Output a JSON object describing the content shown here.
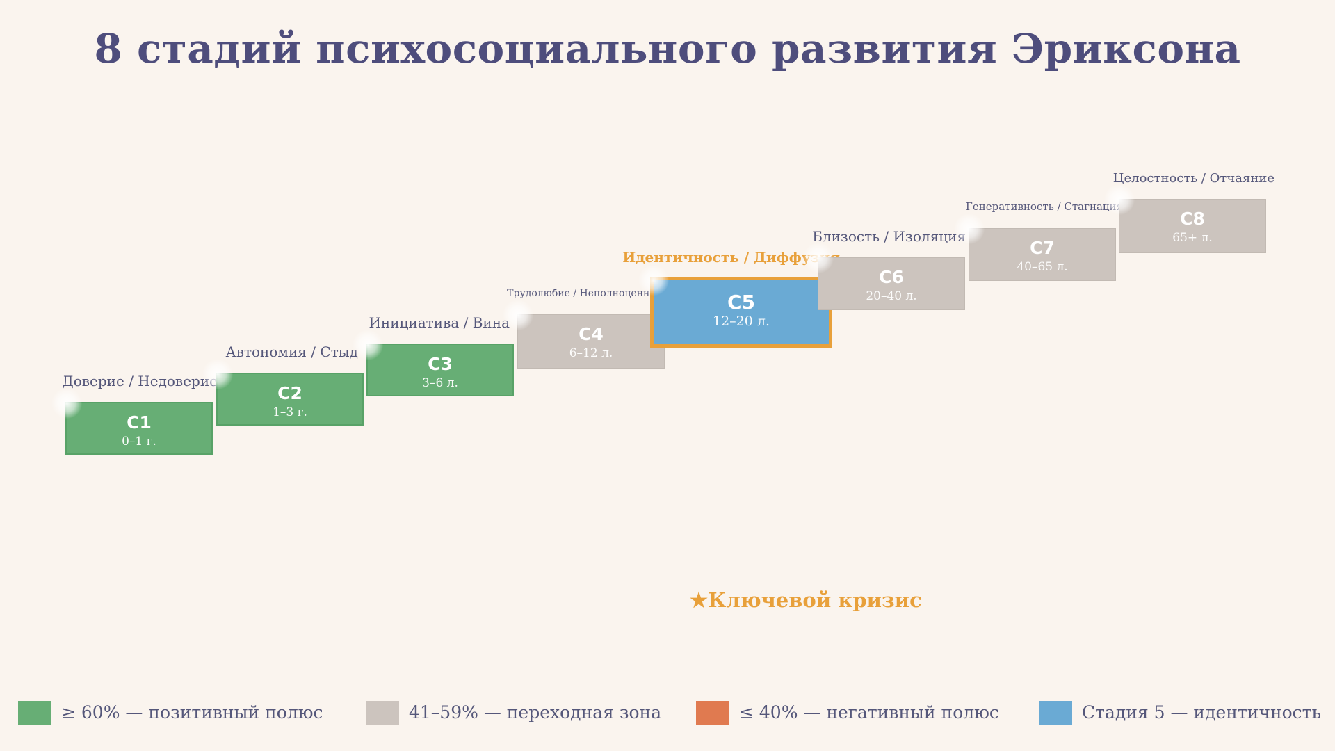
{
  "title": "8 стадий психосоциального развития Эриксона",
  "colors": {
    "positive": "#67ae75",
    "transitional": "#ccc4be",
    "negative": "#e07a50",
    "identity": "#6aaad4",
    "highlight_border": "#e8a03a",
    "title": "#4e4d7c",
    "background": "#faf4ee"
  },
  "stages": [
    {
      "code": "С1",
      "age": "0–1 г.",
      "crisis": "Доверие / Недоверие",
      "category": "positive"
    },
    {
      "code": "С2",
      "age": "1–3 г.",
      "crisis": "Автономия / Стыд",
      "category": "positive"
    },
    {
      "code": "С3",
      "age": "3–6 л.",
      "crisis": "Инициатива / Вина",
      "category": "positive"
    },
    {
      "code": "С4",
      "age": "6–12 л.",
      "crisis": "Трудолюбие / Неполноценность",
      "category": "transitional"
    },
    {
      "code": "С5",
      "age": "12–20 л.",
      "crisis": "Идентичность / Диффузия",
      "category": "identity",
      "key": true
    },
    {
      "code": "С6",
      "age": "20–40 л.",
      "crisis": "Близость / Изоляция",
      "category": "transitional"
    },
    {
      "code": "С7",
      "age": "40–65 л.",
      "crisis": "Генеративность / Стагнация",
      "category": "transitional"
    },
    {
      "code": "С8",
      "age": "65+ л.",
      "crisis": "Целостность / Отчаяние",
      "category": "transitional"
    }
  ],
  "key_note": {
    "star": "★",
    "label": "Ключевой кризис"
  },
  "legend": [
    {
      "label": "≥ 60% — позитивный полюс",
      "category": "positive"
    },
    {
      "label": "41–59% — переходная зона",
      "category": "transitional"
    },
    {
      "label": "≤ 40% — негативный полюс",
      "category": "negative"
    },
    {
      "label": "Стадия 5 — идентичность",
      "category": "identity"
    }
  ]
}
